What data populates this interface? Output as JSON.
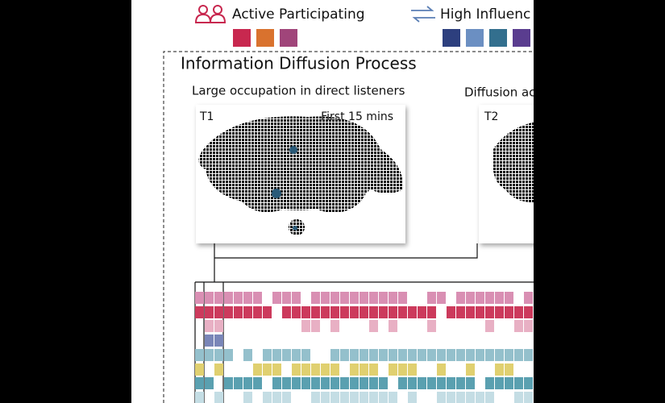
{
  "legend": {
    "active": "Active Participating",
    "influence": "High Influenc"
  },
  "section": {
    "title": "Information Diffusion Process",
    "panels": [
      {
        "caption": "Large occupation in direct listeners",
        "label": "T1",
        "note": "First 15 mins"
      },
      {
        "caption": "Diffusion ac",
        "label": "T2"
      }
    ]
  }
}
